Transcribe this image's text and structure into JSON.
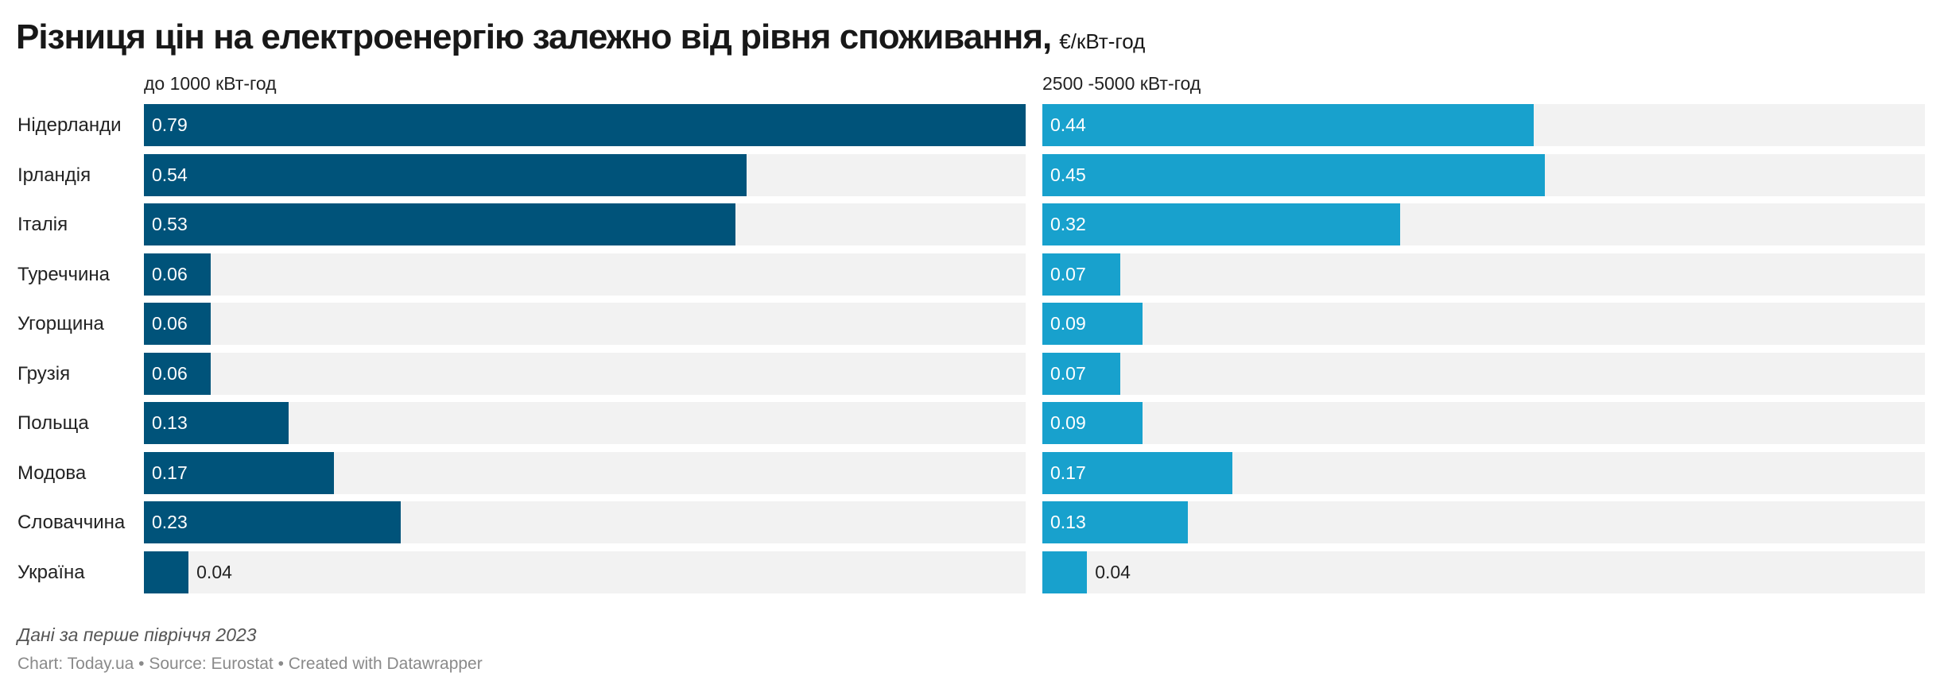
{
  "chart_data": {
    "type": "bar",
    "title": "Різниця цін на електроенергію залежно від рівня споживання,",
    "unit": "€/кВт-год",
    "categories": [
      "Нідерланди",
      "Ірландія",
      "Італія",
      "Туреччина",
      "Угорщина",
      "Грузія",
      "Польща",
      "Модова",
      "Словаччина",
      "Україна"
    ],
    "series": [
      {
        "name": "до 1000 кВт-год",
        "color": "#00537a",
        "values": [
          0.79,
          0.54,
          0.53,
          0.06,
          0.06,
          0.06,
          0.13,
          0.17,
          0.23,
          0.04
        ]
      },
      {
        "name": "2500 -5000 кВт-год",
        "color": "#18a1cd",
        "values": [
          0.44,
          0.45,
          0.32,
          0.07,
          0.09,
          0.07,
          0.09,
          0.17,
          0.13,
          0.04
        ]
      }
    ],
    "xlim": [
      0,
      0.79
    ],
    "background_color": "#f2f2f2"
  },
  "footer": {
    "note": "Дані за перше півріччя 2023",
    "credit": "Chart: Today.ua • Source: Eurostat • Created with Datawrapper"
  }
}
